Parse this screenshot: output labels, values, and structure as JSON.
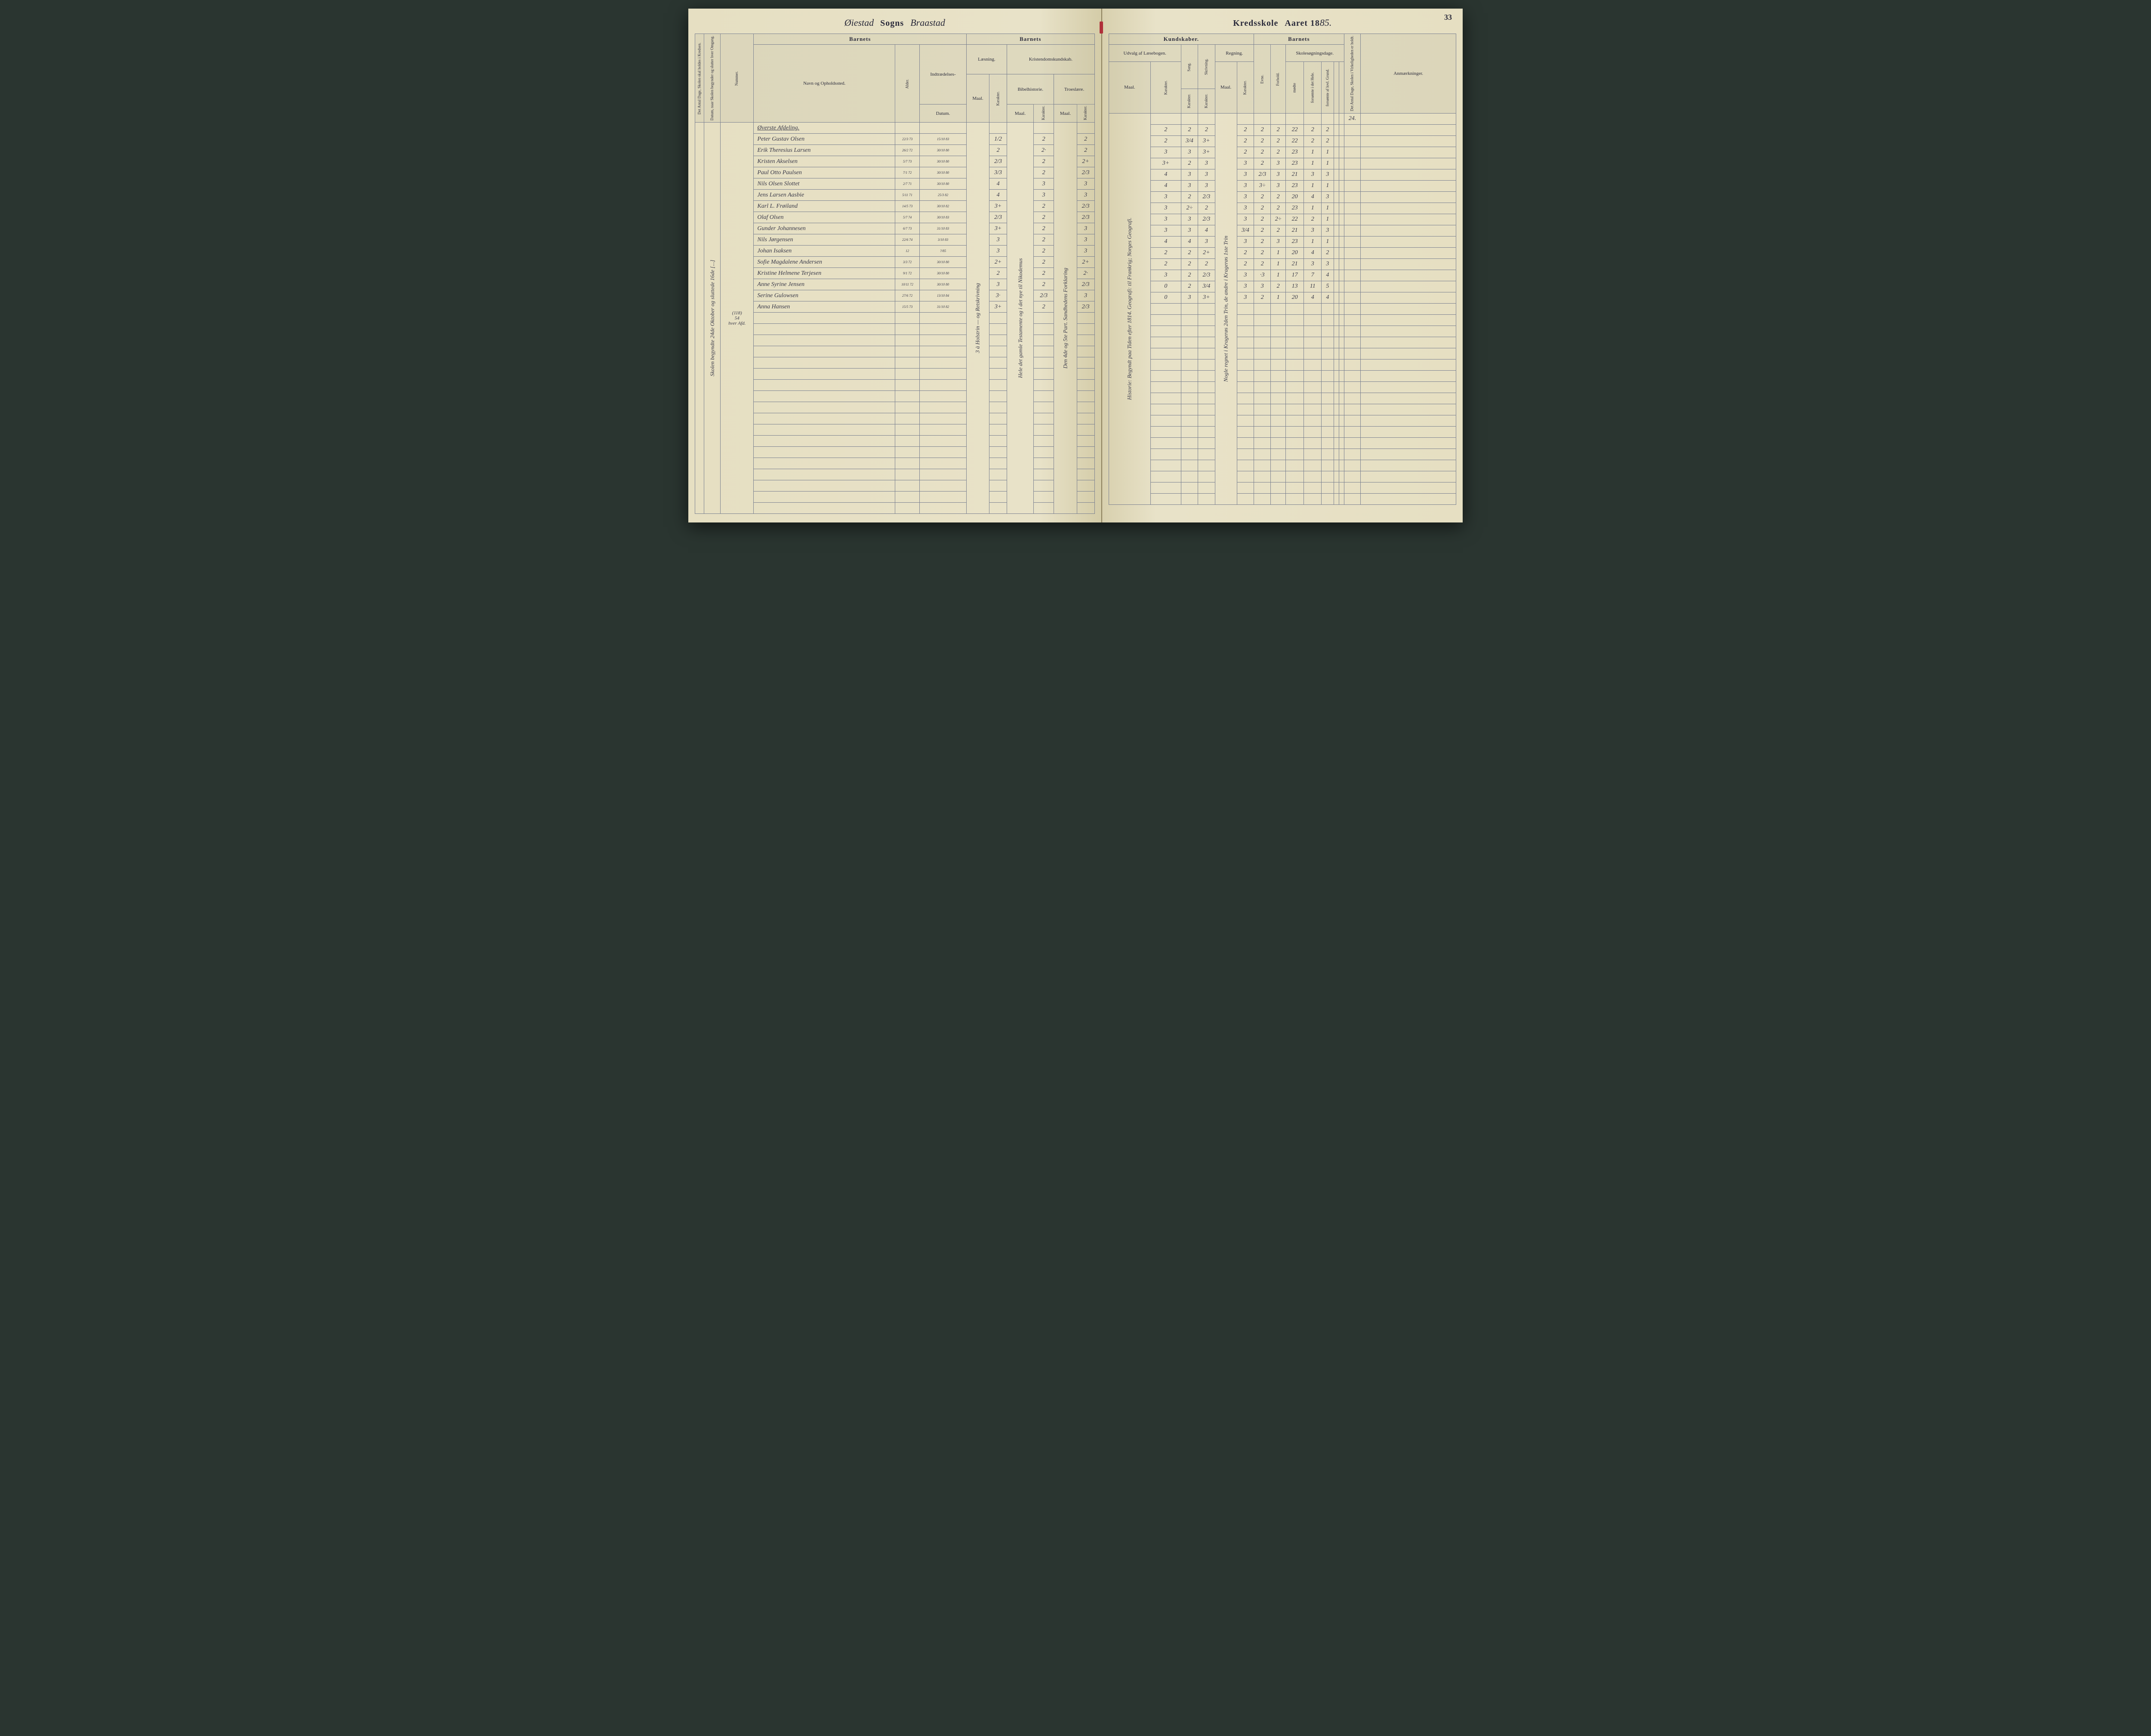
{
  "pageNumber": "33",
  "title": {
    "parish_script": "Øiestad",
    "sogns": "Sogns",
    "district_script": "Braastad",
    "kredsskole": "Kredsskole",
    "aaret": "Aaret 18",
    "year_script": "85."
  },
  "headers": {
    "left": {
      "col1_vert": "Det Antal Dage, Skolen skal holdes i Kredsen.",
      "col2_vert": "Datum, naar Skolen begynder og slutter hver Omgang.",
      "nummer": "Nummer.",
      "barnets": "Barnets",
      "navn": "Navn og Opholdssted.",
      "alder": "Alder.",
      "indtraedelses": "Indtrædelses-",
      "datum": "Datum.",
      "barnets2": "Barnets",
      "laesning": "Læsning.",
      "kristendom": "Kristendomskundskab.",
      "maal": "Maal.",
      "karakter": "Karakter.",
      "bibelhistorie": "Bibelhistorie.",
      "troeslaere": "Troeslære."
    },
    "right": {
      "kundskaber": "Kundskaber.",
      "udvalg": "Udvalg af Læsebogen.",
      "sang": "Sang.",
      "skrivning": "Skrivning.",
      "regning": "Regning.",
      "barnets": "Barnets",
      "evne": "Evne.",
      "forhold": "Forhold.",
      "skolesogningsdage": "Skolesøgningsdage.",
      "modte": "mødte",
      "forsomte_hele": "forsømte i det Hele.",
      "forsomte_grund": "forsømte af lovl. Grund.",
      "antal_dage_vert": "Det Antal Dage, Skolen i Virkeligheden er holdt.",
      "anmaerkninger": "Anmærkninger.",
      "maal": "Maal.",
      "karakter": "Karakter."
    }
  },
  "sideNotes": {
    "leftMargin": "Skolen begyndte 24de Oktober og sluttede 16de [...]",
    "leftNums": [
      "(118)",
      "54",
      "hver Afd."
    ],
    "laesningVert": "3 à Holstrin — og Retskrivning",
    "bibelVert": "Hele det gamle Testamente og i det nye til Nikodemus",
    "troesVert": "Den 4de og 5te Part. Sandhedens Forklaring",
    "udvalgVert": "Historie: Begyndt paa Tiden efter 1814. Geografi: til Frankrig; Norges Geografi.",
    "regningVert": "Nogle regnet i Kragerøs 2den Trin, de andre i Kragerøs 1ste Trin"
  },
  "divisionHeading": "Øverste Afdeling.",
  "antalDage": "24.",
  "students": [
    {
      "name": "Peter Gustav Olsen",
      "alder": "22/3 73",
      "datum": "15/10 83",
      "laes_m": "1/2",
      "laes_k": "",
      "bib_m": "2",
      "bib_k": "",
      "tro_m": "2",
      "udv_m": "",
      "udv_k": "2",
      "sang": "2",
      "skr": "2",
      "reg_m": "",
      "reg_k": "2",
      "evne": "2",
      "forhold": "2",
      "modte": "22",
      "f_hele": "2",
      "f_grund": "2"
    },
    {
      "name": "Erik Theresius Larsen",
      "alder": "26/2 72",
      "datum": "30/10 80",
      "laes_m": "2",
      "laes_k": "",
      "bib_m": "2·",
      "bib_k": "",
      "tro_m": "2",
      "udv_m": "",
      "udv_k": "2",
      "sang": "3/4",
      "skr": "3+",
      "reg_m": "",
      "reg_k": "2",
      "evne": "2",
      "forhold": "2",
      "modte": "22",
      "f_hele": "2",
      "f_grund": "2"
    },
    {
      "name": "Kristen Akselsen",
      "alder": "5/7 73",
      "datum": "30/10 80",
      "laes_m": "2/3",
      "laes_k": "",
      "bib_m": "2",
      "bib_k": "",
      "tro_m": "2+",
      "udv_m": "",
      "udv_k": "3",
      "sang": "3",
      "skr": "3+",
      "reg_m": "",
      "reg_k": "2",
      "evne": "2",
      "forhold": "2",
      "modte": "23",
      "f_hele": "1",
      "f_grund": "1"
    },
    {
      "name": "Paul Otto Paulsen",
      "alder": "7/1 72",
      "datum": "30/10 80",
      "laes_m": "3/3",
      "laes_k": "",
      "bib_m": "2",
      "bib_k": "",
      "tro_m": "2/3",
      "udv_m": "",
      "udv_k": "3+",
      "sang": "2",
      "skr": "3",
      "reg_m": "",
      "reg_k": "3",
      "evne": "2",
      "forhold": "3",
      "modte": "23",
      "f_hele": "1",
      "f_grund": "1"
    },
    {
      "name": "Nils Olsen Slottet",
      "alder": "2/7 71",
      "datum": "30/10 80",
      "laes_m": "4",
      "laes_k": "",
      "bib_m": "3",
      "bib_k": "",
      "tro_m": "3",
      "udv_m": "",
      "udv_k": "4",
      "sang": "3",
      "skr": "3",
      "reg_m": "",
      "reg_k": "3",
      "evne": "2/3",
      "forhold": "3",
      "modte": "21",
      "f_hele": "3",
      "f_grund": "3"
    },
    {
      "name": "Jens Larsen Aasbie",
      "alder": "5/11 71",
      "datum": "25/3 82",
      "laes_m": "4",
      "laes_k": "",
      "bib_m": "3",
      "bib_k": "",
      "tro_m": "3",
      "udv_m": "",
      "udv_k": "4",
      "sang": "3",
      "skr": "3",
      "reg_m": "",
      "reg_k": "3",
      "evne": "3÷",
      "forhold": "3",
      "modte": "23",
      "f_hele": "1",
      "f_grund": "1"
    },
    {
      "name": "Karl L. Frøiland",
      "alder": "14/5 73",
      "datum": "30/10 82",
      "laes_m": "3+",
      "laes_k": "",
      "bib_m": "2",
      "bib_k": "",
      "tro_m": "2/3",
      "udv_m": "",
      "udv_k": "3",
      "sang": "2",
      "skr": "2/3",
      "reg_m": "",
      "reg_k": "3",
      "evne": "2",
      "forhold": "2",
      "modte": "20",
      "f_hele": "4",
      "f_grund": "3"
    },
    {
      "name": "Olaf Olsen",
      "alder": "5/7 74",
      "datum": "30/10 83",
      "laes_m": "2/3",
      "laes_k": "",
      "bib_m": "2",
      "bib_k": "",
      "tro_m": "2/3",
      "udv_m": "",
      "udv_k": "3",
      "sang": "2÷",
      "skr": "2",
      "reg_m": "",
      "reg_k": "3",
      "evne": "2",
      "forhold": "2",
      "modte": "23",
      "f_hele": "1",
      "f_grund": "1"
    },
    {
      "name": "Gunder Johannesen",
      "alder": "6/7 73",
      "datum": "31/10 83",
      "laes_m": "3+",
      "laes_k": "",
      "bib_m": "2",
      "bib_k": "",
      "tro_m": "3",
      "udv_m": "",
      "udv_k": "3",
      "sang": "3",
      "skr": "2/3",
      "reg_m": "",
      "reg_k": "3",
      "evne": "2",
      "forhold": "2÷",
      "modte": "22",
      "f_hele": "2",
      "f_grund": "1"
    },
    {
      "name": "Nils Jørgensen",
      "alder": "22/6 74",
      "datum": "3/10 83",
      "laes_m": "3",
      "laes_k": "",
      "bib_m": "2",
      "bib_k": "",
      "tro_m": "3",
      "udv_m": "",
      "udv_k": "3",
      "sang": "3",
      "skr": "4",
      "reg_m": "",
      "reg_k": "3/4",
      "evne": "2",
      "forhold": "2",
      "modte": "21",
      "f_hele": "3",
      "f_grund": "3"
    },
    {
      "name": "Johan Isaksen",
      "alder": "12",
      "datum": "?/85",
      "laes_m": "3",
      "laes_k": "",
      "bib_m": "2",
      "bib_k": "",
      "tro_m": "3",
      "udv_m": "",
      "udv_k": "4",
      "sang": "4",
      "skr": "3",
      "reg_m": "",
      "reg_k": "3",
      "evne": "2",
      "forhold": "3",
      "modte": "23",
      "f_hele": "1",
      "f_grund": "1"
    },
    {
      "name": "Sofie Magdalene Andersen",
      "alder": "3/3 72",
      "datum": "30/10 80",
      "laes_m": "2+",
      "laes_k": "",
      "bib_m": "2",
      "bib_k": "",
      "tro_m": "2+",
      "udv_m": "",
      "udv_k": "2",
      "sang": "2",
      "skr": "2+",
      "reg_m": "",
      "reg_k": "2",
      "evne": "2",
      "forhold": "1",
      "modte": "20",
      "f_hele": "4",
      "f_grund": "2"
    },
    {
      "name": "Kristine Helmene Terjesen",
      "alder": "9/1 72",
      "datum": "30/10 80",
      "laes_m": "2",
      "laes_k": "",
      "bib_m": "2",
      "bib_k": "",
      "tro_m": "2·",
      "udv_m": "",
      "udv_k": "2",
      "sang": "2",
      "skr": "2",
      "reg_m": "",
      "reg_k": "2",
      "evne": "2",
      "forhold": "1",
      "modte": "21",
      "f_hele": "3",
      "f_grund": "3"
    },
    {
      "name": "Anne Syrine Jensen",
      "alder": "10/11 72",
      "datum": "30/10 80",
      "laes_m": "3",
      "laes_k": "",
      "bib_m": "2",
      "bib_k": "",
      "tro_m": "2/3",
      "udv_m": "",
      "udv_k": "3",
      "sang": "2",
      "skr": "2/3",
      "reg_m": "",
      "reg_k": "3",
      "evne": "·3",
      "forhold": "1",
      "modte": "17",
      "f_hele": "7",
      "f_grund": "4"
    },
    {
      "name": "Serine Gulowsen",
      "alder": "27/6 72",
      "datum": "13/10 84",
      "laes_m": "3·",
      "laes_k": "",
      "bib_m": "2/3",
      "bib_k": "",
      "tro_m": "3",
      "udv_m": "",
      "udv_k": "0",
      "sang": "2",
      "skr": "3/4",
      "reg_m": "",
      "reg_k": "3",
      "evne": "3",
      "forhold": "2",
      "modte": "13",
      "f_hele": "11",
      "f_grund": "5"
    },
    {
      "name": "Anna Hansen",
      "alder": "15/5 73",
      "datum": "31/10 82",
      "laes_m": "3+",
      "laes_k": "",
      "bib_m": "2",
      "bib_k": "",
      "tro_m": "2/3",
      "udv_m": "",
      "udv_k": "0",
      "sang": "3",
      "skr": "3+",
      "reg_m": "",
      "reg_k": "3",
      "evne": "2",
      "forhold": "1",
      "modte": "20",
      "f_hele": "4",
      "f_grund": "4"
    }
  ],
  "emptyRows": 18
}
